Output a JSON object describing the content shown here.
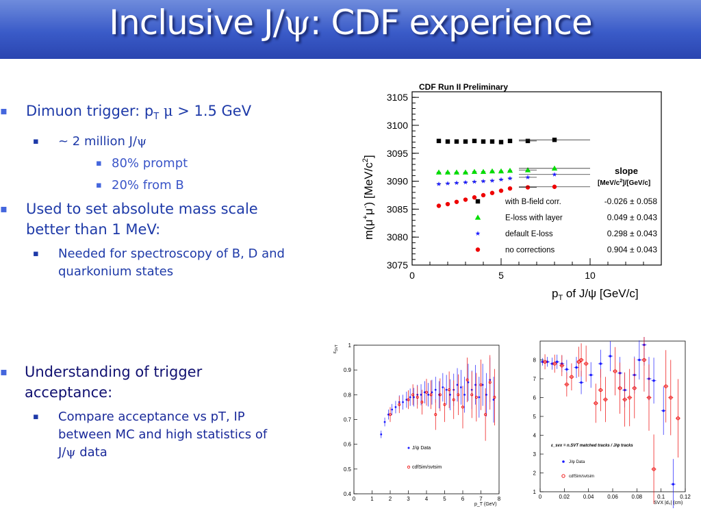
{
  "title": {
    "pre": "Inclusive J/",
    "psi": "ψ",
    "post": ": CDF experience"
  },
  "bullets_top": {
    "b1": {
      "pre": "Dimuon trigger: p",
      "sub": "T",
      "mu": " μ",
      "post": " > 1.5 GeV"
    },
    "b1_1": {
      "pre": "~ 2 million J/",
      "psi": "ψ"
    },
    "b1_1_1": "80% prompt",
    "b1_1_2": "20% from B",
    "b2_line1": "Used to set absolute mass scale",
    "b2_line2": "better than 1 MeV:",
    "b2_1_line1": "Needed for spectroscopy of B, D and",
    "b2_1_line2": "quarkonium states"
  },
  "bullets_bottom": {
    "b3_line1": "Understanding of trigger",
    "b3_line2": "acceptance:",
    "b3_1_line1": "Compare acceptance vs pT, IP",
    "b3_1_line2": "between MC and high statistics of",
    "b3_1_line3_pre": "J/",
    "b3_1_line3_psi": "ψ",
    "b3_1_line3_post": " data"
  },
  "chart_data": [
    {
      "type": "scatter",
      "title": "CDF Run II Preliminary",
      "xlabel": "pT of J/ψ [GeV/c]",
      "ylabel": "m(μ+μ-) [MeV/c2]",
      "xlim": [
        0,
        14
      ],
      "ylim": [
        3075,
        3106
      ],
      "xticks": [
        0,
        5,
        10
      ],
      "yticks": [
        3075,
        3080,
        3085,
        3090,
        3095,
        3100,
        3105
      ],
      "legend_header": {
        "slope": "slope",
        "units": "[MeV/c2]/[GeV/c]"
      },
      "series": [
        {
          "name": "with B-field corr.",
          "slope": "-0.026 ± 0.058",
          "color": "#000000",
          "marker": "square",
          "x": [
            1.5,
            2.0,
            2.5,
            3.0,
            3.5,
            4.0,
            4.5,
            5.0,
            5.5,
            6.5,
            8.0
          ],
          "y": [
            3097.2,
            3097.1,
            3097.1,
            3097.1,
            3097.2,
            3097.1,
            3097.1,
            3097.0,
            3097.2,
            3097.2,
            3097.4
          ]
        },
        {
          "name": "E-loss with layer",
          "slope": "0.049 ± 0.043",
          "color": "#00dd00",
          "marker": "triangle",
          "x": [
            1.5,
            2.0,
            2.5,
            3.0,
            3.5,
            4.0,
            4.5,
            5.0,
            5.5,
            6.5,
            8.0
          ],
          "y": [
            3091.6,
            3091.6,
            3091.6,
            3091.6,
            3091.7,
            3091.7,
            3091.8,
            3091.8,
            3091.9,
            3092.0,
            3092.3
          ]
        },
        {
          "name": "default E-loss",
          "slope": "0.298 ± 0.043",
          "color": "#1a1aff",
          "marker": "star",
          "x": [
            1.5,
            2.0,
            2.5,
            3.0,
            3.5,
            4.0,
            4.5,
            5.0,
            5.5,
            6.5,
            8.0
          ],
          "y": [
            3089.5,
            3089.6,
            3089.7,
            3089.8,
            3089.9,
            3090.0,
            3090.1,
            3090.3,
            3090.5,
            3090.7,
            3091.2
          ]
        },
        {
          "name": "no corrections",
          "slope": "0.904 ± 0.043",
          "color": "#ee0000",
          "marker": "circle",
          "x": [
            1.5,
            2.0,
            2.5,
            3.0,
            3.5,
            4.0,
            4.5,
            5.0,
            5.5,
            6.5,
            8.0
          ],
          "y": [
            3085.6,
            3085.9,
            3086.3,
            3086.7,
            3087.1,
            3087.5,
            3087.9,
            3088.3,
            3088.7,
            3088.9,
            3089.0
          ]
        }
      ]
    },
    {
      "type": "scatter",
      "ylabel": "ε_SVT",
      "xlabel": "p_T (GeV)",
      "xlim": [
        0,
        8
      ],
      "ylim": [
        0.4,
        1
      ],
      "xticks": [
        0,
        1,
        2,
        3,
        4,
        5,
        6,
        7,
        8
      ],
      "yticks": [
        0.4,
        0.5,
        0.6,
        0.7,
        0.8,
        0.9,
        1
      ],
      "series": [
        {
          "name": "J/ψ Data",
          "color": "#1a1aff",
          "x": [
            1.5,
            1.7,
            1.9,
            2.1,
            2.3,
            2.5,
            2.7,
            2.9,
            3.1,
            3.3,
            3.5,
            3.7,
            3.9,
            4.1,
            4.3,
            4.5,
            4.7,
            4.9,
            5.1,
            5.3,
            5.5,
            5.7,
            5.9,
            6.1,
            6.3,
            6.5,
            6.7,
            6.9,
            7.1,
            7.3,
            7.5,
            7.7
          ],
          "y": [
            0.64,
            0.69,
            0.72,
            0.74,
            0.75,
            0.77,
            0.77,
            0.78,
            0.79,
            0.79,
            0.8,
            0.8,
            0.81,
            0.8,
            0.81,
            0.82,
            0.8,
            0.83,
            0.82,
            0.8,
            0.82,
            0.84,
            0.83,
            0.8,
            0.85,
            0.82,
            0.84,
            0.79,
            0.84,
            0.8,
            0.86,
            0.78
          ]
        },
        {
          "name": "cdfSim/svtsim",
          "color": "#ee0000",
          "x": [
            2.0,
            2.5,
            3.0,
            3.25,
            3.5,
            3.75,
            4.0,
            4.25,
            4.5,
            4.75,
            5.0,
            5.25,
            5.5,
            5.75,
            6.0,
            6.25,
            6.5,
            6.75,
            7.0,
            7.25,
            7.5,
            7.75
          ],
          "y": [
            0.72,
            0.76,
            0.78,
            0.8,
            0.79,
            0.77,
            0.81,
            0.8,
            0.72,
            0.8,
            0.76,
            0.82,
            0.78,
            0.8,
            0.75,
            0.86,
            0.8,
            0.79,
            0.84,
            0.72,
            0.85,
            0.79
          ]
        }
      ]
    },
    {
      "type": "scatter",
      "annotation": "ε_svx = n.SVT matched tracks / J/ψ tracks",
      "xlabel": "SVX |d₀| (cm)",
      "xlim": [
        0,
        0.12
      ],
      "ylim": [
        1,
        9
      ],
      "xticks": [
        0,
        0.02,
        0.04,
        0.06,
        0.08,
        0.1,
        0.12
      ],
      "yticks": [
        1,
        2,
        3,
        4,
        5,
        6,
        7,
        8
      ],
      "series": [
        {
          "name": "J/ψ Data",
          "color": "#1a1aff",
          "x": [
            0.002,
            0.006,
            0.01,
            0.014,
            0.018,
            0.022,
            0.03,
            0.034,
            0.042,
            0.05,
            0.058,
            0.066,
            0.07,
            0.078,
            0.082,
            0.086,
            0.09,
            0.094,
            0.102,
            0.11
          ],
          "y": [
            7.9,
            7.9,
            7.8,
            7.9,
            7.8,
            7.5,
            7.6,
            6.8,
            7.2,
            7.8,
            8.2,
            7.3,
            6.4,
            7.2,
            8.0,
            8.8,
            7.0,
            6.9,
            5.3,
            1.4
          ]
        },
        {
          "name": "cdfSim/svtsim",
          "color": "#ee0000",
          "x": [
            0.004,
            0.012,
            0.018,
            0.022,
            0.026,
            0.032,
            0.034,
            0.038,
            0.046,
            0.05,
            0.054,
            0.062,
            0.066,
            0.07,
            0.074,
            0.078,
            0.086,
            0.09,
            0.094,
            0.104,
            0.108,
            0.114
          ],
          "y": [
            7.9,
            7.8,
            7.7,
            6.7,
            7.1,
            7.9,
            8.0,
            7.8,
            5.7,
            6.4,
            5.9,
            7.4,
            6.5,
            5.9,
            6.0,
            6.5,
            8.0,
            6.0,
            2.2,
            6.6,
            6.0,
            4.9
          ]
        }
      ]
    }
  ]
}
